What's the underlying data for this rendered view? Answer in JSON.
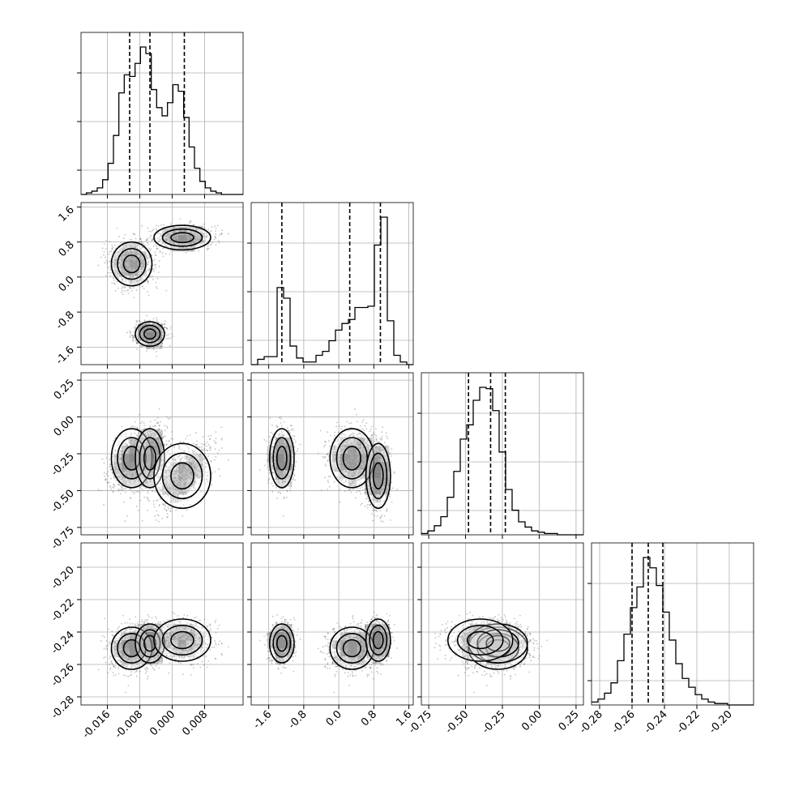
{
  "chart_data": {
    "type": "corner",
    "n_params": 4,
    "colors": {
      "line": "#000000",
      "grid": "#b0b0b0",
      "background": "#ffffff",
      "points": "#555555"
    },
    "grid": true,
    "param_ranges": [
      [
        -0.0225,
        0.0175
      ],
      [
        -2.0,
        1.7
      ],
      [
        -0.8,
        0.3
      ],
      [
        -0.285,
        -0.185
      ]
    ],
    "x_ticks": [
      [
        "-0.016",
        "-0.008",
        "0.000",
        "0.008"
      ],
      [
        "-1.6",
        "-0.8",
        "0.0",
        "0.8",
        "1.6"
      ],
      [
        "-0.75",
        "-0.50",
        "-0.25",
        "0.00",
        "0.25"
      ],
      [
        "-0.28",
        "-0.26",
        "-0.24",
        "-0.22",
        "-0.20"
      ]
    ],
    "y_ticks": [
      [],
      [
        "1.6",
        "0.8",
        "0.0",
        "-0.8",
        "-1.6"
      ],
      [
        "0.25",
        "0.00",
        "-0.25",
        "-0.50",
        "-0.75"
      ],
      [
        "-0.20",
        "-0.22",
        "-0.24",
        "-0.26",
        "-0.28"
      ]
    ],
    "quantiles": [
      [
        -0.0105,
        -0.0055,
        0.003
      ],
      [
        -1.3,
        0.25,
        0.95
      ],
      [
        -0.48,
        -0.33,
        -0.23
      ],
      [
        -0.26,
        -0.25,
        -0.241
      ]
    ],
    "histograms": [
      {
        "param": 0,
        "edges": [
          -0.0225,
          0.0175
        ],
        "counts": [
          0,
          1,
          2,
          4,
          9,
          19,
          36,
          62,
          73,
          72,
          80,
          90,
          86,
          64,
          53,
          48,
          56,
          67,
          63,
          47,
          29,
          16,
          8,
          4,
          2,
          1,
          0,
          0,
          0,
          0
        ]
      },
      {
        "param": 1,
        "edges": [
          -2.0,
          1.7
        ],
        "counts": [
          0,
          4,
          6,
          6,
          58,
          50,
          14,
          5,
          2,
          2,
          7,
          10,
          18,
          26,
          31,
          34,
          43,
          43,
          44,
          90,
          111,
          33,
          7,
          2,
          0
        ]
      },
      {
        "param": 2,
        "edges": [
          -0.8,
          0.3
        ],
        "counts": [
          1,
          3,
          7,
          14,
          29,
          49,
          74,
          85,
          104,
          114,
          113,
          96,
          64,
          35,
          19,
          10,
          6,
          3,
          2,
          1,
          1,
          0,
          0,
          0,
          0
        ]
      },
      {
        "param": 3,
        "edges": [
          -0.285,
          -0.185
        ],
        "counts": [
          2,
          4,
          8,
          15,
          30,
          48,
          66,
          80,
          100,
          93,
          81,
          63,
          44,
          28,
          18,
          12,
          7,
          4,
          2,
          1,
          1,
          0,
          0,
          0,
          0
        ]
      }
    ]
  }
}
